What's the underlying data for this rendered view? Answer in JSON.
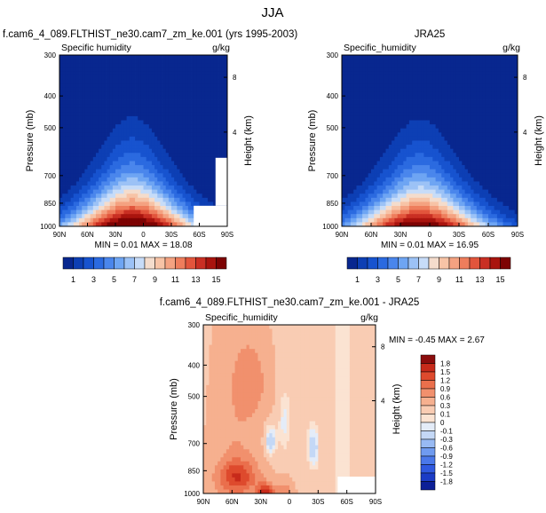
{
  "page": {
    "title": "JJA"
  },
  "colors": {
    "abs_scale": [
      "#08278f",
      "#0d3fb4",
      "#1753cf",
      "#2b6ae0",
      "#4a86ec",
      "#6ea5f3",
      "#9cc2f6",
      "#c7dcf8",
      "#f4dccc",
      "#f7c3a6",
      "#f4a281",
      "#ee7d5c",
      "#e2553c",
      "#c92f23",
      "#a9140e",
      "#7d0303"
    ],
    "diff_scale": [
      "#0c1f97",
      "#1b3cc6",
      "#2f59e0",
      "#4a78ea",
      "#6f9bf0",
      "#98baf3",
      "#c4d8f6",
      "#e4ecf8",
      "#fbe3d2",
      "#f9ccb3",
      "#f6b08f",
      "#f1906d",
      "#ea6f4c",
      "#de4a2d",
      "#c72a1a",
      "#8b0c0c"
    ]
  },
  "chart_data": [
    {
      "type": "heatmap",
      "title": "f.cam6_4_089.FLTHIST_ne30.cam7_zm_ke.001 (yrs 1995-2003)",
      "subtitle": "Specific humidity",
      "units": "g/kg",
      "ylabel": "Pressure (mb)",
      "ylabel_right": "Height (km)",
      "x_ticks": [
        "90N",
        "60N",
        "30N",
        "0",
        "30S",
        "60S",
        "90S"
      ],
      "y_ticks": [
        "300",
        "400",
        "500",
        "700",
        "850",
        "1000"
      ],
      "y_ticks_right": [
        "8",
        "4"
      ],
      "stats": "MIN =  0.01  MAX =  18.08",
      "min": 0.01,
      "max": 18.08,
      "peak_lat": 12
    },
    {
      "type": "heatmap",
      "title": "JRA25",
      "subtitle": "Specific_humidity",
      "units": "g/kg",
      "ylabel": "Pressure (mb)",
      "ylabel_right": "Height (km)",
      "x_ticks": [
        "90N",
        "60N",
        "30N",
        "0",
        "30S",
        "60S",
        "90S"
      ],
      "y_ticks": [
        "300",
        "400",
        "500",
        "700",
        "850",
        "1000"
      ],
      "y_ticks_right": [
        "8",
        "4"
      ],
      "stats": "MIN =  0.01  MAX =  16.95",
      "min": 0.01,
      "max": 16.95,
      "peak_lat": 10
    },
    {
      "type": "heatmap",
      "title": "f.cam6_4_089.FLTHIST_ne30.cam7_zm_ke.001 - JRA25",
      "subtitle": "Specific_humidity",
      "units": "g/kg",
      "ylabel": "Pressure (mb)",
      "ylabel_right": "Height (km)",
      "x_ticks": [
        "90N",
        "60N",
        "30N",
        "0",
        "30S",
        "60S",
        "90S"
      ],
      "y_ticks": [
        "300",
        "400",
        "500",
        "700",
        "850",
        "1000"
      ],
      "y_ticks_right": [
        "8",
        "4"
      ],
      "stats": "MIN = -0.45  MAX =   2.67",
      "min": -0.45,
      "max": 2.67
    }
  ],
  "colorbar_abs": {
    "labels": [
      "1",
      "3",
      "5",
      "7",
      "9",
      "11",
      "13",
      "15"
    ]
  },
  "colorbar_diff": {
    "labels": [
      "1.8",
      "1.5",
      "1.2",
      "0.9",
      "0.6",
      "0.3",
      "0.1",
      "0",
      "-0.1",
      "-0.3",
      "-0.6",
      "-0.9",
      "-1.2",
      "-1.5",
      "-1.8"
    ]
  }
}
